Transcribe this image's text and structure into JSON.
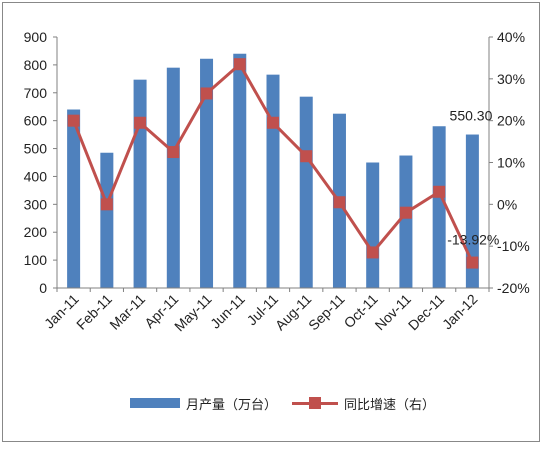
{
  "chart_data": {
    "type": "bar+line",
    "categories": [
      "Jan-11",
      "Feb-11",
      "Mar-11",
      "Apr-11",
      "May-11",
      "Jun-11",
      "Jul-11",
      "Aug-11",
      "Sep-11",
      "Oct-11",
      "Nov-11",
      "Dec-11",
      "Jan-12"
    ],
    "series": [
      {
        "name": "月产量（万台）",
        "type": "bar",
        "axis": "left",
        "color": "#4f81bd",
        "values": [
          640,
          485,
          747,
          790,
          822,
          840,
          765,
          686,
          625,
          450,
          475,
          580,
          550.3
        ]
      },
      {
        "name": "同比增速（右）",
        "type": "line",
        "axis": "right",
        "color": "#c0504d",
        "marker": "square",
        "values": [
          20.0,
          0.0,
          19.5,
          12.5,
          26.5,
          33.5,
          19.5,
          11.5,
          0.5,
          -11.5,
          -2.0,
          3.0,
          -13.92
        ]
      }
    ],
    "yaxis_left": {
      "min": 0,
      "max": 900,
      "ticks": [
        "0",
        "100",
        "200",
        "300",
        "400",
        "500",
        "600",
        "700",
        "800",
        "900"
      ]
    },
    "yaxis_right": {
      "min": -20,
      "max": 40,
      "ticks": [
        "-20%",
        "-10%",
        "0%",
        "10%",
        "20%",
        "30%",
        "40%"
      ]
    },
    "annotations": [
      {
        "text": "550.30",
        "category": "Jan-12",
        "series": 0
      },
      {
        "text": "-13.92%",
        "category": "Jan-12",
        "series": 1
      }
    ],
    "legend_position": "bottom",
    "grid": false
  }
}
